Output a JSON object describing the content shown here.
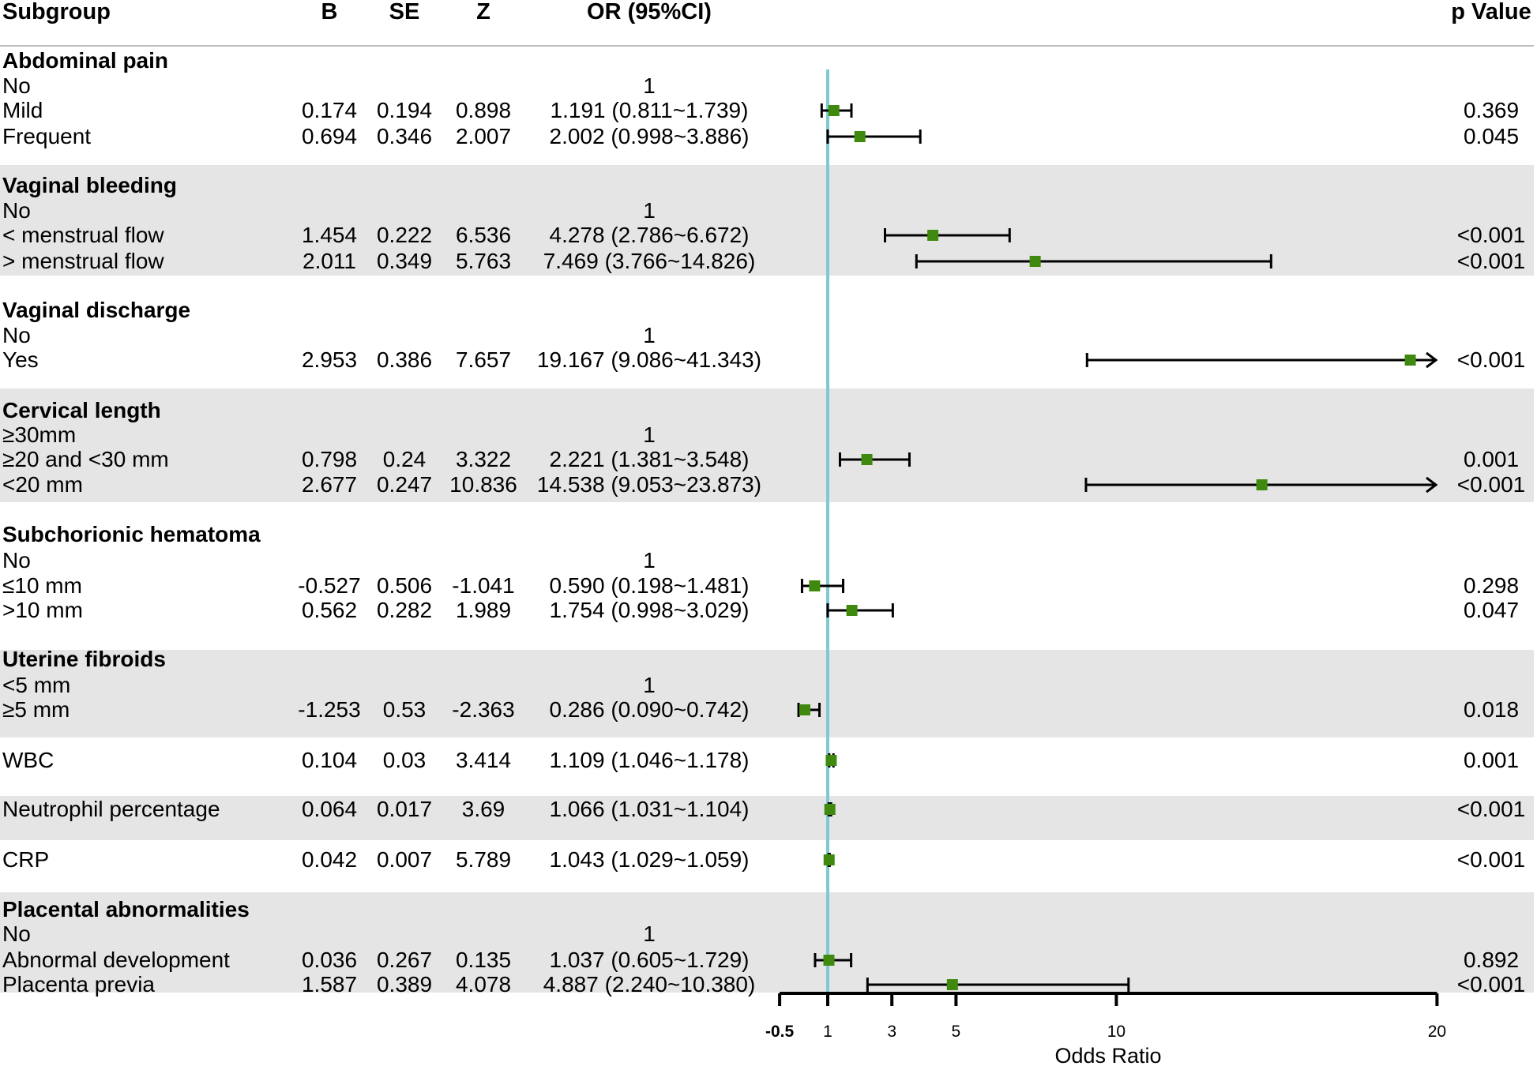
{
  "header": {
    "subgroup": "Subgroup",
    "b": "B",
    "se": "SE",
    "z": "Z",
    "or": "OR (95%CI)",
    "p": "p Value"
  },
  "rows": [
    {
      "label": "Abdominal pain",
      "group": true
    },
    {
      "label": "No",
      "or_text": "1"
    },
    {
      "label": "Mild",
      "b": "0.174",
      "se": "0.194",
      "z": "0.898",
      "or_text": "1.191 (0.811~1.739)",
      "p": "0.369"
    },
    {
      "label": "Frequent",
      "b": "0.694",
      "se": "0.346",
      "z": "2.007",
      "or_text": "2.002 (0.998~3.886)",
      "p": "0.045"
    },
    {
      "label": "Vaginal bleeding",
      "group": true
    },
    {
      "label": "No",
      "or_text": "1"
    },
    {
      "label": "< menstrual flow",
      "b": "1.454",
      "se": "0.222",
      "z": "6.536",
      "or_text": "4.278 (2.786~6.672)",
      "p": "<0.001"
    },
    {
      "label": "> menstrual flow",
      "b": "2.011",
      "se": "0.349",
      "z": "5.763",
      "or_text": "7.469 (3.766~14.826)",
      "p": "<0.001"
    },
    {
      "label": "Vaginal discharge",
      "group": true
    },
    {
      "label": "No",
      "or_text": "1"
    },
    {
      "label": "Yes",
      "b": "2.953",
      "se": "0.386",
      "z": "7.657",
      "or_text": "19.167 (9.086~41.343)",
      "p": "<0.001"
    },
    {
      "label": "Cervical length",
      "group": true
    },
    {
      "label": "≥30mm",
      "or_text": "1"
    },
    {
      "label": "≥20 and <30 mm",
      "b": "0.798",
      "se": "0.24",
      "z": "3.322",
      "or_text": "2.221 (1.381~3.548)",
      "p": "0.001"
    },
    {
      "label": "<20 mm",
      "b": "2.677",
      "se": "0.247",
      "z": "10.836",
      "or_text": "14.538 (9.053~23.873)",
      "p": "<0.001"
    },
    {
      "label": "Subchorionic hematoma",
      "group": true
    },
    {
      "label": "No",
      "or_text": "1"
    },
    {
      "label": "≤10 mm",
      "b": "-0.527",
      "se": "0.506",
      "z": "-1.041",
      "or_text": "0.590 (0.198~1.481)",
      "p": "0.298"
    },
    {
      "label": ">10 mm",
      "b": "0.562",
      "se": "0.282",
      "z": "1.989",
      "or_text": "1.754 (0.998~3.029)",
      "p": "0.047"
    },
    {
      "label": "Uterine fibroids",
      "group": true
    },
    {
      "label": "<5 mm",
      "or_text": "1"
    },
    {
      "label": "≥5 mm",
      "b": "-1.253",
      "se": "0.53",
      "z": "-2.363",
      "or_text": "0.286 (0.090~0.742)",
      "p": "0.018"
    },
    {
      "label": "WBC",
      "b": "0.104",
      "se": "0.03",
      "z": "3.414",
      "or_text": "1.109 (1.046~1.178)",
      "p": "0.001"
    },
    {
      "label": "Neutrophil percentage",
      "b": "0.064",
      "se": "0.017",
      "z": "3.69",
      "or_text": "1.066 (1.031~1.104)",
      "p": "<0.001"
    },
    {
      "label": "CRP",
      "b": "0.042",
      "se": "0.007",
      "z": "5.789",
      "or_text": "1.043 (1.029~1.059)",
      "p": "<0.001"
    },
    {
      "label": "Placental abnormalities",
      "group": true
    },
    {
      "label": "No",
      "or_text": "1"
    },
    {
      "label": "Abnormal development",
      "b": "0.036",
      "se": "0.267",
      "z": "0.135",
      "or_text": "1.037 (0.605~1.729)",
      "p": "0.892"
    },
    {
      "label": "Placenta previa",
      "b": "1.587",
      "se": "0.389",
      "z": "4.078",
      "or_text": "4.887 (2.240~10.380)",
      "p": "<0.001"
    }
  ],
  "chart_data": {
    "type": "forest",
    "xlabel": "Odds Ratio",
    "xlim": [
      -0.5,
      20
    ],
    "reference_line": 1,
    "ticks": [
      -0.5,
      1,
      3,
      5,
      10,
      20
    ],
    "tick_labels": [
      "-0.5",
      "1",
      "3",
      "5",
      "10",
      "20"
    ],
    "points": [
      {
        "row": 2,
        "label": "Mild",
        "or": 1.191,
        "lower": 0.811,
        "upper": 1.739
      },
      {
        "row": 3,
        "label": "Frequent",
        "or": 2.002,
        "lower": 0.998,
        "upper": 3.886
      },
      {
        "row": 6,
        "label": "< menstrual flow",
        "or": 4.278,
        "lower": 2.786,
        "upper": 6.672
      },
      {
        "row": 7,
        "label": "> menstrual flow",
        "or": 7.469,
        "lower": 3.766,
        "upper": 14.826
      },
      {
        "row": 10,
        "label": "Yes",
        "or": 19.167,
        "lower": 9.086,
        "upper": 41.343
      },
      {
        "row": 13,
        "label": "≥20 and <30 mm",
        "or": 2.221,
        "lower": 1.381,
        "upper": 3.548
      },
      {
        "row": 14,
        "label": "<20 mm",
        "or": 14.538,
        "lower": 9.053,
        "upper": 23.873
      },
      {
        "row": 17,
        "label": "≤10 mm",
        "or": 0.59,
        "lower": 0.198,
        "upper": 1.481
      },
      {
        "row": 18,
        "label": ">10 mm",
        "or": 1.754,
        "lower": 0.998,
        "upper": 3.029
      },
      {
        "row": 21,
        "label": "≥5 mm",
        "or": 0.286,
        "lower": 0.09,
        "upper": 0.742
      },
      {
        "row": 22,
        "label": "WBC",
        "or": 1.109,
        "lower": 1.046,
        "upper": 1.178
      },
      {
        "row": 23,
        "label": "Neutrophil percentage",
        "or": 1.066,
        "lower": 1.031,
        "upper": 1.104
      },
      {
        "row": 24,
        "label": "CRP",
        "or": 1.043,
        "lower": 1.029,
        "upper": 1.059
      },
      {
        "row": 27,
        "label": "Abnormal development",
        "or": 1.037,
        "lower": 0.605,
        "upper": 1.729
      },
      {
        "row": 28,
        "label": "Placenta previa",
        "or": 4.887,
        "lower": 2.24,
        "upper": 10.38
      }
    ],
    "colors": {
      "marker": "#3f8a0e",
      "reference_line": "#7ecad4",
      "band": "#e5e5e5",
      "ci": "#000000"
    }
  }
}
